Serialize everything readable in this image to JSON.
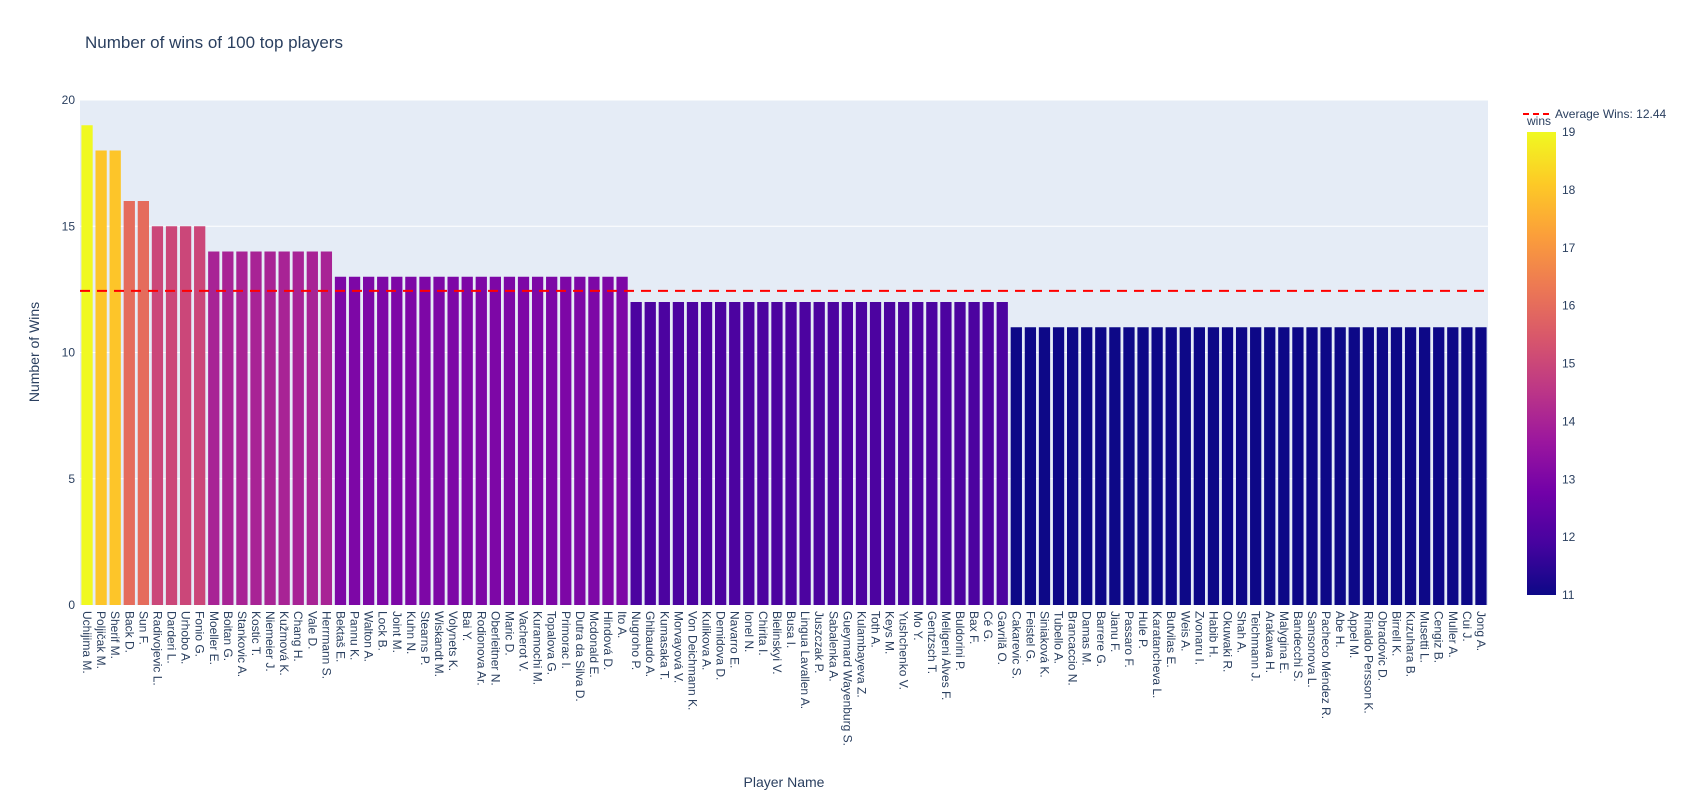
{
  "chart_data": {
    "type": "bar",
    "title": "Number of wins of 100 top players",
    "xlabel": "Player Name",
    "ylabel": "Number of Wins",
    "ylim": [
      0,
      20
    ],
    "yticks": [
      0,
      5,
      10,
      15,
      20
    ],
    "grid": true,
    "categories": [
      "Uchijima M.",
      "Poljičak M.",
      "Sherif M.",
      "Back D.",
      "Sun F.",
      "Radivojevic L.",
      "Darderi L.",
      "Urhobo A.",
      "Fonio G.",
      "Moeller E.",
      "Boitan G.",
      "Stankovic A.",
      "Kostic T.",
      "Niemeier J.",
      "Kužmová K.",
      "Chang H.",
      "Vale D.",
      "Herrmann S.",
      "Bektaš E.",
      "Pannu K.",
      "Walton A.",
      "Lock B.",
      "Joint M.",
      "Kuhn N.",
      "Stearns P.",
      "Wiskandt M.",
      "Volynets K.",
      "Bai Y.",
      "Rodionova Ar.",
      "Oberleitner N.",
      "Maric D.",
      "Vacherot V.",
      "Kuramochi M.",
      "Topalova G.",
      "Primorac I.",
      "Dutra da Silva D.",
      "Mcdonald E.",
      "Hindová D.",
      "Ito A.",
      "Nugroho P.",
      "Ghibaudo A.",
      "Kumasaka T.",
      "Morvayová V.",
      "Von Deichmann K.",
      "Kulikova A.",
      "Demidova D.",
      "Navarro E.",
      "Ionel N.",
      "Chirita I.",
      "Bielinskyi V.",
      "Busa I.",
      "Lingua Lavallen A.",
      "Juszczak P.",
      "Sabalenka A.",
      "Gueymard Wayenburg S.",
      "Kulambayeva Z.",
      "Toth A.",
      "Keys M.",
      "Yushchenko V.",
      "Mo Y.",
      "Gentzsch T.",
      "Meligeni Alves F.",
      "Buldorini P.",
      "Bax F.",
      "Cé G.",
      "Gavrilă O.",
      "Cakarevic S.",
      "Feistel G.",
      "Siniaková K.",
      "Tubello A.",
      "Brancaccio N.",
      "Damas M.",
      "Barrere G.",
      "Jianu F.",
      "Passaro F.",
      "Hule P.",
      "Karatancheva L.",
      "Butvilas E.",
      "Weis A.",
      "Zvonaru I.",
      "Habib H.",
      "Okuwaki R.",
      "Shah A.",
      "Teichmann J.",
      "Arakawa H.",
      "Malygina E.",
      "Bandecchi S.",
      "Samsonova L.",
      "Pacheco Méndez R.",
      "Abe H.",
      "Appel M.",
      "Rinaldo Persson K.",
      "Obradovic D.",
      "Birrell K.",
      "Kuzuhara B.",
      "Musetti L.",
      "Cengiz B.",
      "Muller A.",
      "Cui J.",
      "Jong A."
    ],
    "values": [
      19,
      18,
      18,
      16,
      16,
      15,
      15,
      15,
      15,
      14,
      14,
      14,
      14,
      14,
      14,
      14,
      14,
      14,
      13,
      13,
      13,
      13,
      13,
      13,
      13,
      13,
      13,
      13,
      13,
      13,
      13,
      13,
      13,
      13,
      13,
      13,
      13,
      13,
      13,
      12,
      12,
      12,
      12,
      12,
      12,
      12,
      12,
      12,
      12,
      12,
      12,
      12,
      12,
      12,
      12,
      12,
      12,
      12,
      12,
      12,
      12,
      12,
      12,
      12,
      12,
      12,
      11,
      11,
      11,
      11,
      11,
      11,
      11,
      11,
      11,
      11,
      11,
      11,
      11,
      11,
      11,
      11,
      11,
      11,
      11,
      11,
      11,
      11,
      11,
      11,
      11,
      11,
      11,
      11,
      11,
      11,
      11,
      11,
      11,
      11
    ],
    "average": {
      "label": "Average Wins: 12.44",
      "value": 12.44,
      "color": "#ff0000"
    },
    "colorbar": {
      "title": "wins",
      "range": [
        11,
        19
      ],
      "ticks": [
        11,
        12,
        13,
        14,
        15,
        16,
        17,
        18,
        19
      ]
    },
    "colorscale": [
      "#0d0887",
      "#46039f",
      "#7201a8",
      "#9c179e",
      "#bd3786",
      "#d8576b",
      "#ed7953",
      "#fb9f3a",
      "#fdca26",
      "#f0f921"
    ],
    "plot_bg": "#e5ecf6"
  }
}
